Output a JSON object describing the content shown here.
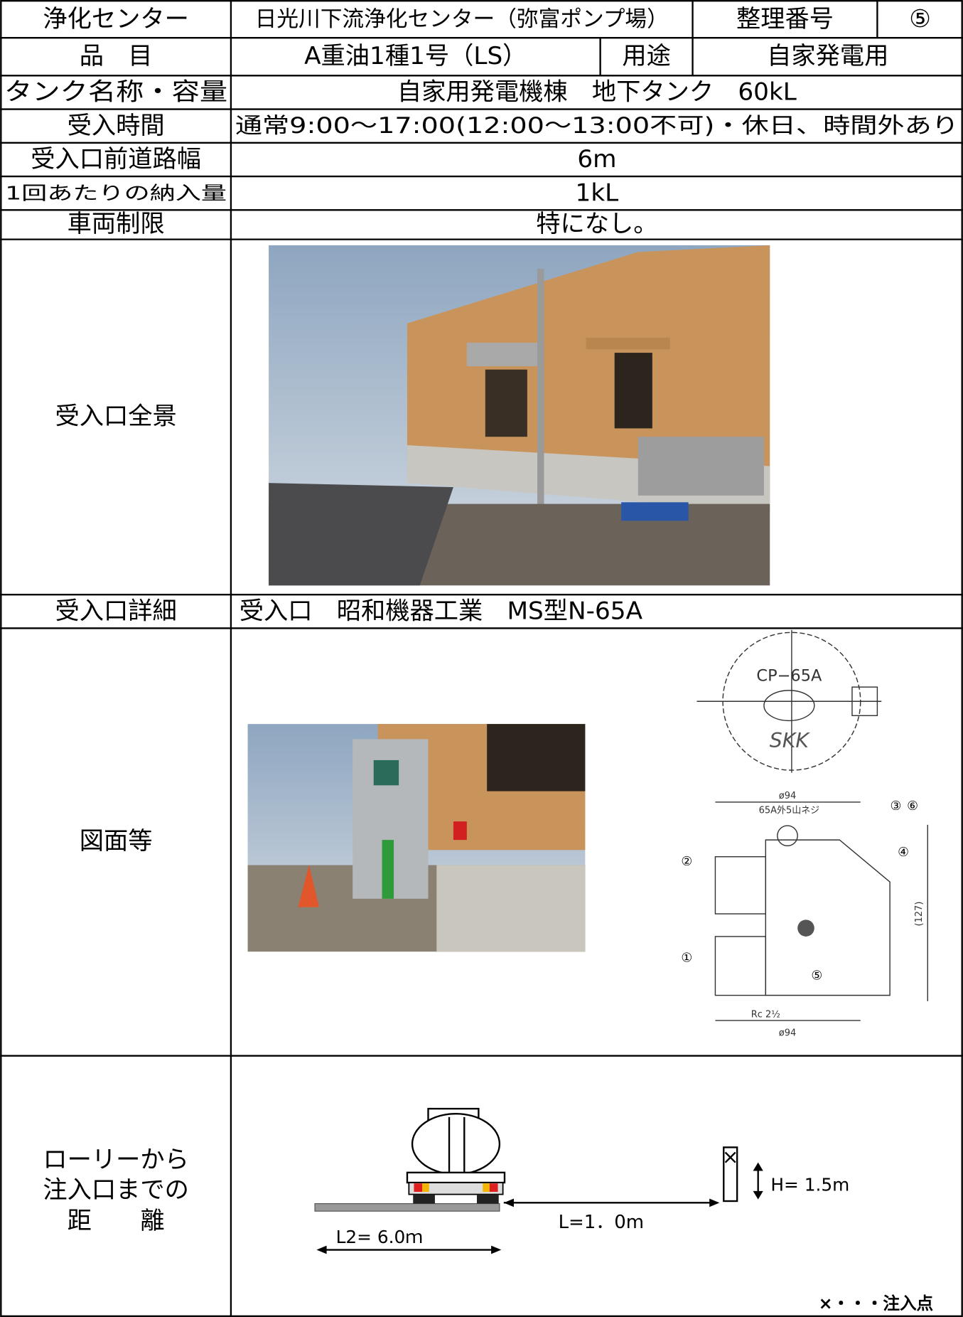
{
  "header": {
    "center_label": "浄化センター",
    "center_name": "日光川下流浄化センター（弥富ポンプ場）",
    "number_label": "整理番号",
    "number": "⑤"
  },
  "item": {
    "label": "品　目",
    "value": "A重油1種1号（LS）",
    "use_label": "用途",
    "use": "自家発電用"
  },
  "rows": [
    {
      "label": "タンク名称・容量",
      "value": "自家用発電機棟　地下タンク　60kL"
    },
    {
      "label": "受入時間",
      "value": "通常9:00～17:00(12:00～13:00不可)・休日、時間外あり"
    },
    {
      "label": "受入口前道路幅",
      "value": "6m"
    },
    {
      "label": "1回あたりの納入量",
      "value": "1kL"
    },
    {
      "label": "車両制限",
      "value": "特になし。"
    }
  ],
  "overview": {
    "label": "受入口全景"
  },
  "detail": {
    "label": "受入口詳細",
    "value": "受入口　昭和機器工業　MS型N-65A"
  },
  "drawings": {
    "label": "図面等",
    "cap_model": "CP−65A",
    "cap_brand": "SKK",
    "dia_top": "ø94",
    "thread": "65A外5山ネジ",
    "height": "(127)",
    "rc": "Rc 2½",
    "dia_bottom": "ø94",
    "parts": [
      "①",
      "②",
      "③",
      "④",
      "⑤",
      "⑥"
    ]
  },
  "distance": {
    "label_lines": [
      "ローリーから",
      "注入口までの",
      "距　　離"
    ],
    "l": "L=1．0m",
    "h": "H= 1.5m",
    "l2": "L2= 6.0ｍ",
    "legend": "×・・・注入点"
  }
}
